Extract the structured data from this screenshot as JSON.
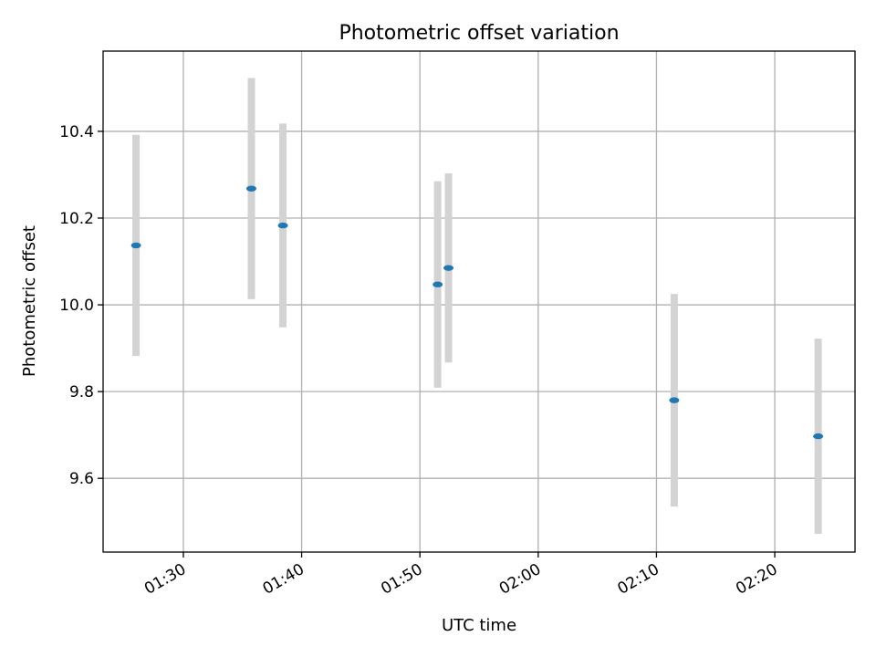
{
  "chart_data": {
    "type": "scatter",
    "title": "Photometric offset variation",
    "xlabel": "UTC time",
    "ylabel": "Photometric offset",
    "x_ticks": [
      "01:30",
      "01:40",
      "01:50",
      "02:00",
      "02:10",
      "02:20"
    ],
    "y_ticks": [
      "9.6",
      "9.8",
      "10.0",
      "10.2",
      "10.4"
    ],
    "xlim": [
      "01:23:13",
      "02:26:47"
    ],
    "ylim": [
      9.43,
      10.585
    ],
    "grid": true,
    "marker_color": "#1f77b4",
    "errorbar_color": "#d3d3d3",
    "series": [
      {
        "points": [
          {
            "x": "01:26:00",
            "y": 10.137,
            "err": 0.255
          },
          {
            "x": "01:35:45",
            "y": 10.268,
            "err": 0.255
          },
          {
            "x": "01:38:25",
            "y": 10.183,
            "err": 0.235
          },
          {
            "x": "01:51:30",
            "y": 10.047,
            "err": 0.238
          },
          {
            "x": "01:52:25",
            "y": 10.085,
            "err": 0.218
          },
          {
            "x": "02:11:30",
            "y": 9.78,
            "err": 0.245
          },
          {
            "x": "02:23:40",
            "y": 9.697,
            "err": 0.225
          }
        ]
      }
    ]
  }
}
